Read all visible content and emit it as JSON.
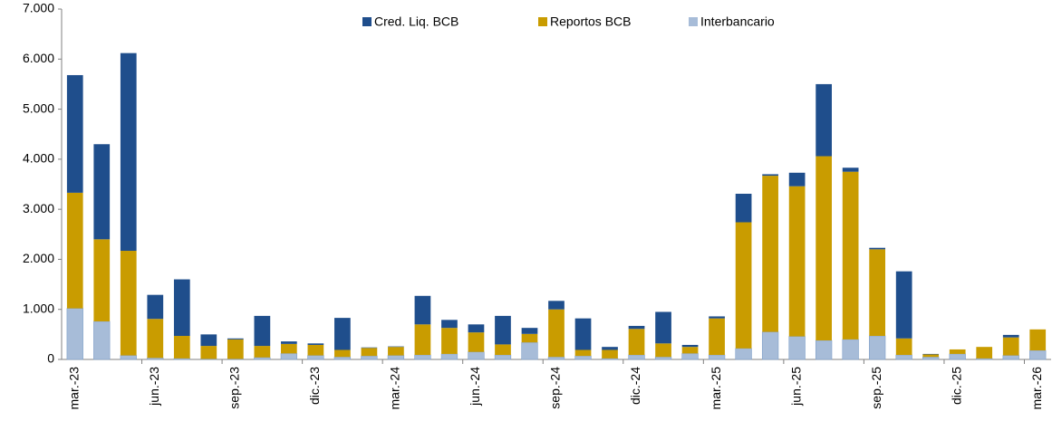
{
  "chart_data": {
    "type": "stacked_bar",
    "categories": [
      "mar.-23",
      null,
      null,
      "jun.-23",
      null,
      null,
      "sep.-23",
      null,
      null,
      "dic.-23",
      null,
      null,
      "mar.-24",
      null,
      null,
      "jun.-24",
      null,
      null,
      "sep.-24",
      null,
      null,
      "dic.-24",
      null,
      null,
      "mar.-25",
      null,
      null,
      "jun.-25",
      null,
      null,
      "sep.-25",
      null,
      null,
      "dic.-25",
      null,
      null,
      "mar.-26"
    ],
    "series": [
      {
        "name": "Cred. Liq. BCB",
        "color": "#1f4e8c",
        "values": [
          2350,
          1900,
          3950,
          480,
          1130,
          230,
          20,
          600,
          50,
          30,
          640,
          10,
          10,
          570,
          160,
          160,
          570,
          120,
          170,
          630,
          60,
          60,
          630,
          40,
          40,
          570,
          30,
          270,
          1440,
          80,
          30,
          1340,
          10,
          0,
          0,
          50,
          0
        ]
      },
      {
        "name": "Reportos BCB",
        "color": "#c99c00",
        "values": [
          2310,
          1640,
          2090,
          780,
          450,
          260,
          390,
          230,
          190,
          210,
          140,
          160,
          170,
          610,
          520,
          390,
          210,
          170,
          950,
          120,
          170,
          520,
          270,
          130,
          730,
          2520,
          3120,
          3000,
          3680,
          3350,
          1730,
          330,
          50,
          90,
          230,
          360,
          420
        ]
      },
      {
        "name": "Interbancario",
        "color": "#a7bcd8",
        "values": [
          1020,
          760,
          80,
          30,
          20,
          10,
          10,
          40,
          120,
          80,
          50,
          70,
          80,
          90,
          110,
          150,
          90,
          340,
          50,
          70,
          20,
          90,
          50,
          120,
          90,
          220,
          550,
          460,
          380,
          400,
          470,
          90,
          50,
          110,
          20,
          80,
          180
        ]
      }
    ],
    "ylim": [
      0,
      7000
    ],
    "yticks": [
      0,
      {
        "value": 1000,
        "label": "1.000"
      },
      {
        "value": 2000,
        "label": "2.000"
      },
      {
        "value": 3000,
        "label": "3.000"
      },
      {
        "value": 4000,
        "label": "4.000"
      },
      {
        "value": 5000,
        "label": "5.000"
      },
      {
        "value": 6000,
        "label": "6.000"
      },
      {
        "value": 7000,
        "label": "7.000"
      }
    ],
    "grid": false,
    "legend": "top"
  }
}
